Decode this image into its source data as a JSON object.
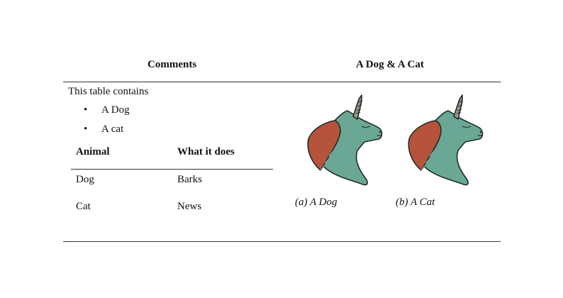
{
  "headers": {
    "comments": "Comments",
    "dogcat": "A Dog & A Cat"
  },
  "intro": "This table contains",
  "bullets": [
    {
      "symbol": "•",
      "text": "A Dog"
    },
    {
      "symbol": "•",
      "text": "A cat"
    }
  ],
  "inner_table": {
    "columns": [
      "Animal",
      "What it does"
    ],
    "rows": [
      [
        "Dog",
        "Barks"
      ],
      [
        "Cat",
        "News"
      ]
    ]
  },
  "figures": [
    {
      "icon": "unicorn-icon",
      "caption": "(a) A Dog"
    },
    {
      "icon": "unicorn-icon",
      "caption": "(b) A Cat"
    }
  ],
  "colors": {
    "mane": "#b5533c",
    "body": "#6aa895",
    "outline": "#1f2b27",
    "horn": "#a09a88"
  }
}
